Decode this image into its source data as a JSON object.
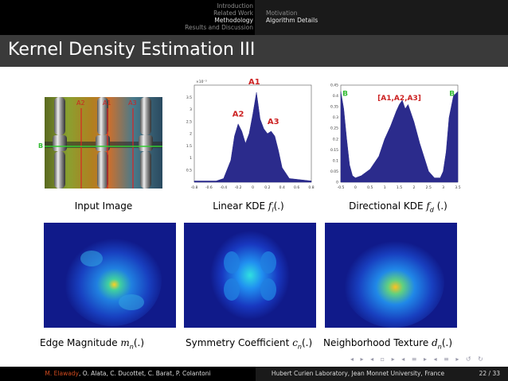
{
  "nav": {
    "sections": [
      "Introduction",
      "Related Work",
      "Methodology",
      "Results and Discussion"
    ],
    "current_section": "Methodology",
    "subsections": [
      "Motivation",
      "Algorithm Details"
    ],
    "current_subsection": "Algorithm Details"
  },
  "slide": {
    "title": "Kernel Density Estimation III",
    "input_image": {
      "caption": "Input Image",
      "labels": {
        "a2": "A2",
        "a1": "A1",
        "a3": "A3",
        "b": "B"
      }
    },
    "linear_kde": {
      "caption_prefix": "Linear KDE ",
      "caption_math": "f",
      "caption_sub": "l",
      "caption_suffix": "(.)",
      "annotations": [
        "A1",
        "A2",
        "A3"
      ],
      "multiplier": "×10⁻³"
    },
    "directional_kde": {
      "caption_prefix": "Directional KDE ",
      "caption_math": "f",
      "caption_sub": "d",
      "caption_suffix": " (.)",
      "annotations": [
        "B",
        "[A1,A2,A3]",
        "B"
      ]
    },
    "maps": [
      {
        "caption_prefix": "Edge Magnitude ",
        "caption_math": "m",
        "caption_sub": "n",
        "caption_suffix": "(.)"
      },
      {
        "caption_prefix": "Symmetry Coefficient ",
        "caption_math": "c",
        "caption_sub": "n",
        "caption_suffix": "(.)"
      },
      {
        "caption_prefix": "Neighborhood Texture ",
        "caption_math": "d",
        "caption_sub": "n",
        "caption_suffix": "(.)"
      }
    ]
  },
  "chart_data": [
    {
      "type": "area",
      "title": "",
      "xlabel": "",
      "ylabel": "",
      "xlim": [
        -0.8,
        0.8
      ],
      "ylim": [
        0,
        4
      ],
      "xticks": [
        "-0.8",
        "-0.6",
        "-0.4",
        "-0.2",
        "0",
        "0.2",
        "0.4",
        "0.6",
        "0.8"
      ],
      "yticks": [
        "0.5",
        "1",
        "1.5",
        "2",
        "2.5",
        "3",
        "3.5"
      ],
      "series": [
        {
          "x": [
            -0.8,
            -0.5,
            -0.4,
            -0.3,
            -0.25,
            -0.2,
            -0.15,
            -0.1,
            -0.05,
            0,
            0.05,
            0.1,
            0.15,
            0.2,
            0.25,
            0.3,
            0.35,
            0.4,
            0.5,
            0.8
          ],
          "values": [
            0.05,
            0.05,
            0.15,
            0.9,
            1.9,
            2.4,
            2.1,
            1.6,
            2.0,
            2.8,
            3.7,
            2.6,
            2.2,
            2.0,
            2.1,
            1.9,
            1.3,
            0.6,
            0.15,
            0.05
          ]
        }
      ],
      "grid": false
    },
    {
      "type": "area",
      "title": "",
      "xlabel": "",
      "ylabel": "",
      "xlim": [
        -0.5,
        3.5
      ],
      "ylim": [
        0,
        0.45
      ],
      "xticks": [
        "-0.5",
        "0",
        "0.5",
        "1",
        "1.5",
        "2",
        "2.5",
        "3",
        "3.5"
      ],
      "yticks": [
        "0",
        "0.05",
        "0.1",
        "0.15",
        "0.2",
        "0.25",
        "0.3",
        "0.35",
        "0.4",
        "0.45"
      ],
      "series": [
        {
          "x": [
            -0.5,
            -0.4,
            -0.3,
            -0.2,
            -0.1,
            0,
            0.2,
            0.5,
            0.8,
            1.0,
            1.2,
            1.4,
            1.5,
            1.6,
            1.7,
            1.8,
            2.0,
            2.2,
            2.5,
            2.7,
            2.9,
            3.0,
            3.1,
            3.2,
            3.35,
            3.5
          ],
          "values": [
            0.42,
            0.34,
            0.2,
            0.08,
            0.03,
            0.02,
            0.03,
            0.06,
            0.12,
            0.2,
            0.26,
            0.33,
            0.36,
            0.38,
            0.34,
            0.36,
            0.28,
            0.18,
            0.05,
            0.02,
            0.02,
            0.05,
            0.14,
            0.3,
            0.4,
            0.42
          ]
        }
      ],
      "grid": false
    }
  ],
  "footer": {
    "author_highlight": "M. Elawady",
    "authors_rest": ", O. Alata, C. Ducottet, C. Barat, P. Colantoni",
    "institution": "Hubert Curien Laboratory, Jean Monnet University, France",
    "page": "22 / 33"
  },
  "colors": {
    "nav_bg": "#000000",
    "title_bg": "#3a3a3a",
    "annotation_red": "#cc2222",
    "annotation_green": "#33bb33",
    "kde_fill": "#2b2b8c",
    "author_highlight": "#d04a1e"
  }
}
